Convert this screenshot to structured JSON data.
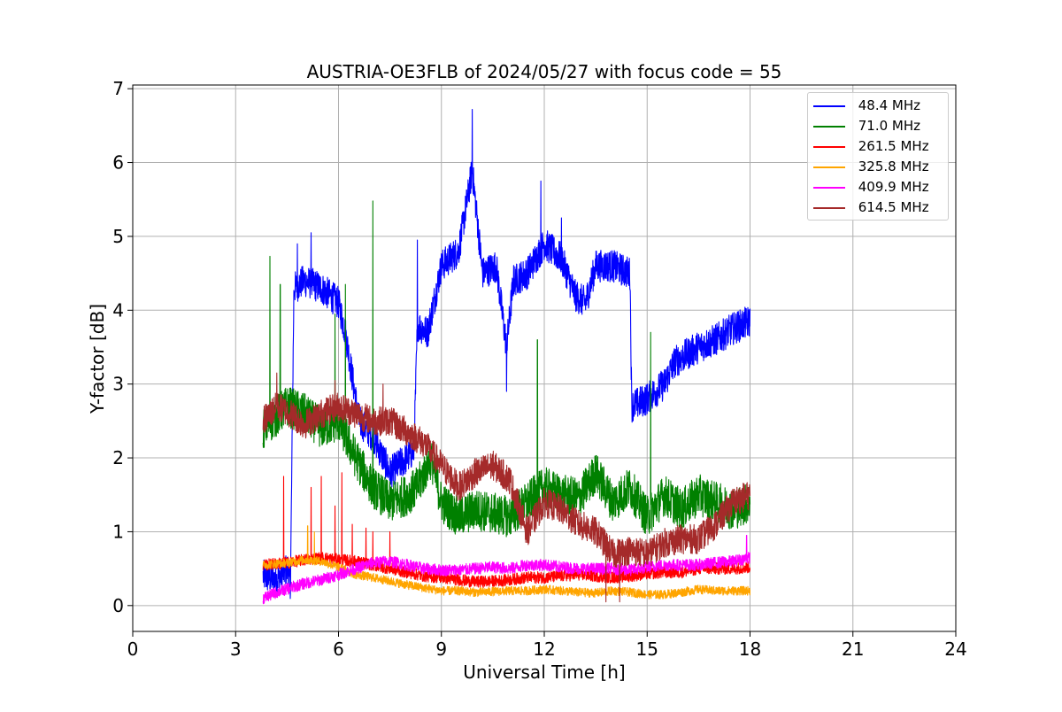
{
  "chart_data": {
    "type": "line",
    "title": "AUSTRIA-OE3FLB of 2024/05/27 with focus code = 55",
    "xlabel": "Universal Time [h]",
    "ylabel": "Y-factor [dB]",
    "xlim": [
      0,
      24
    ],
    "ylim": [
      -0.35,
      7.05
    ],
    "xticks": [
      0,
      3,
      6,
      9,
      12,
      15,
      18,
      21,
      24
    ],
    "yticks": [
      0,
      1,
      2,
      3,
      4,
      5,
      6,
      7
    ],
    "grid": true,
    "legend_position": "top-right",
    "series": [
      {
        "name": " 48.4 MHz",
        "color": "#0000ff",
        "noise": 0.22,
        "points": [
          [
            3.8,
            0.4
          ],
          [
            4.2,
            0.35
          ],
          [
            4.5,
            0.5
          ],
          [
            4.6,
            0.3
          ],
          [
            4.7,
            4.3
          ],
          [
            5.0,
            4.4
          ],
          [
            5.5,
            4.3
          ],
          [
            6.0,
            4.1
          ],
          [
            6.2,
            3.7
          ],
          [
            6.4,
            3.1
          ],
          [
            6.6,
            2.5
          ],
          [
            7.0,
            2.3
          ],
          [
            7.5,
            1.8
          ],
          [
            8.0,
            2.0
          ],
          [
            8.2,
            2.1
          ],
          [
            8.3,
            3.8
          ],
          [
            8.6,
            3.7
          ],
          [
            9.0,
            4.6
          ],
          [
            9.5,
            4.8
          ],
          [
            9.9,
            5.9
          ],
          [
            10.2,
            4.5
          ],
          [
            10.6,
            4.6
          ],
          [
            10.9,
            3.5
          ],
          [
            11.1,
            4.4
          ],
          [
            11.5,
            4.5
          ],
          [
            12.0,
            4.9
          ],
          [
            12.5,
            4.7
          ],
          [
            12.9,
            4.2
          ],
          [
            13.2,
            4.1
          ],
          [
            13.5,
            4.6
          ],
          [
            14.0,
            4.6
          ],
          [
            14.5,
            4.5
          ],
          [
            14.55,
            2.7
          ],
          [
            15.0,
            2.8
          ],
          [
            15.5,
            3.0
          ],
          [
            15.8,
            3.3
          ],
          [
            16.5,
            3.5
          ],
          [
            17.0,
            3.6
          ],
          [
            17.5,
            3.75
          ],
          [
            18.0,
            3.85
          ]
        ],
        "spikes": [
          [
            9.9,
            6.72
          ],
          [
            11.9,
            5.75
          ],
          [
            5.2,
            5.05
          ],
          [
            8.3,
            4.95
          ],
          [
            4.8,
            4.9
          ],
          [
            12.5,
            5.25
          ],
          [
            10.9,
            2.9
          ]
        ]
      },
      {
        "name": " 71.0 MHz",
        "color": "#008000",
        "noise": 0.28,
        "points": [
          [
            3.8,
            2.4
          ],
          [
            4.5,
            2.7
          ],
          [
            5.0,
            2.6
          ],
          [
            5.5,
            2.4
          ],
          [
            6.0,
            2.5
          ],
          [
            6.5,
            2.0
          ],
          [
            7.0,
            1.6
          ],
          [
            7.5,
            1.4
          ],
          [
            8.0,
            1.5
          ],
          [
            8.3,
            1.6
          ],
          [
            8.7,
            2.0
          ],
          [
            9.0,
            1.4
          ],
          [
            9.5,
            1.2
          ],
          [
            10.0,
            1.3
          ],
          [
            10.5,
            1.25
          ],
          [
            11.0,
            1.2
          ],
          [
            11.5,
            1.4
          ],
          [
            12.0,
            1.6
          ],
          [
            12.5,
            1.5
          ],
          [
            13.0,
            1.45
          ],
          [
            13.5,
            1.8
          ],
          [
            14.0,
            1.4
          ],
          [
            14.5,
            1.6
          ],
          [
            15.0,
            1.2
          ],
          [
            15.5,
            1.5
          ],
          [
            16.0,
            1.3
          ],
          [
            16.5,
            1.5
          ],
          [
            17.0,
            1.4
          ],
          [
            17.5,
            1.3
          ],
          [
            18.0,
            1.4
          ]
        ],
        "spikes": [
          [
            7.0,
            5.48
          ],
          [
            4.0,
            4.73
          ],
          [
            4.3,
            4.35
          ],
          [
            6.2,
            4.35
          ],
          [
            5.9,
            3.95
          ],
          [
            11.8,
            3.6
          ],
          [
            15.1,
            3.7
          ]
        ]
      },
      {
        "name": " 261.5 MHz",
        "color": "#ff0000",
        "noise": 0.08,
        "points": [
          [
            3.8,
            0.55
          ],
          [
            4.5,
            0.58
          ],
          [
            5.0,
            0.62
          ],
          [
            5.5,
            0.65
          ],
          [
            6.0,
            0.62
          ],
          [
            6.5,
            0.6
          ],
          [
            7.0,
            0.55
          ],
          [
            7.5,
            0.5
          ],
          [
            8.0,
            0.45
          ],
          [
            8.5,
            0.4
          ],
          [
            9.0,
            0.38
          ],
          [
            9.5,
            0.35
          ],
          [
            10.0,
            0.32
          ],
          [
            10.5,
            0.33
          ],
          [
            11.0,
            0.35
          ],
          [
            11.5,
            0.38
          ],
          [
            12.0,
            0.38
          ],
          [
            12.5,
            0.4
          ],
          [
            13.0,
            0.42
          ],
          [
            13.5,
            0.4
          ],
          [
            14.0,
            0.38
          ],
          [
            14.5,
            0.4
          ],
          [
            15.0,
            0.43
          ],
          [
            15.5,
            0.45
          ],
          [
            16.0,
            0.45
          ],
          [
            16.5,
            0.5
          ],
          [
            17.0,
            0.5
          ],
          [
            17.5,
            0.5
          ],
          [
            18.0,
            0.52
          ]
        ],
        "spikes": [
          [
            4.4,
            1.75
          ],
          [
            5.5,
            1.75
          ],
          [
            5.2,
            1.6
          ],
          [
            6.1,
            1.8
          ],
          [
            5.9,
            1.35
          ],
          [
            6.4,
            1.1
          ],
          [
            6.8,
            1.05
          ],
          [
            7.0,
            1.0
          ],
          [
            7.5,
            1.0
          ]
        ]
      },
      {
        "name": " 325.8 MHz",
        "color": "#ffa500",
        "noise": 0.06,
        "points": [
          [
            3.8,
            0.55
          ],
          [
            4.5,
            0.58
          ],
          [
            5.0,
            0.62
          ],
          [
            5.5,
            0.6
          ],
          [
            6.0,
            0.52
          ],
          [
            6.5,
            0.42
          ],
          [
            7.0,
            0.38
          ],
          [
            7.5,
            0.33
          ],
          [
            8.0,
            0.28
          ],
          [
            8.5,
            0.24
          ],
          [
            9.0,
            0.2
          ],
          [
            9.5,
            0.2
          ],
          [
            10.0,
            0.18
          ],
          [
            10.5,
            0.19
          ],
          [
            11.0,
            0.2
          ],
          [
            11.5,
            0.2
          ],
          [
            12.0,
            0.22
          ],
          [
            12.5,
            0.2
          ],
          [
            13.0,
            0.18
          ],
          [
            13.5,
            0.17
          ],
          [
            14.0,
            0.2
          ],
          [
            14.5,
            0.18
          ],
          [
            15.0,
            0.15
          ],
          [
            15.5,
            0.15
          ],
          [
            16.0,
            0.18
          ],
          [
            16.5,
            0.22
          ],
          [
            17.0,
            0.2
          ],
          [
            17.5,
            0.2
          ],
          [
            18.0,
            0.2
          ]
        ],
        "spikes": [
          [
            5.1,
            1.08
          ],
          [
            5.3,
            1.0
          ]
        ]
      },
      {
        "name": " 409.9 MHz",
        "color": "#ff00ff",
        "noise": 0.08,
        "points": [
          [
            3.8,
            0.1
          ],
          [
            4.2,
            0.18
          ],
          [
            4.6,
            0.24
          ],
          [
            5.0,
            0.3
          ],
          [
            5.5,
            0.35
          ],
          [
            6.0,
            0.42
          ],
          [
            6.5,
            0.5
          ],
          [
            7.0,
            0.58
          ],
          [
            7.5,
            0.6
          ],
          [
            8.0,
            0.55
          ],
          [
            8.5,
            0.5
          ],
          [
            9.0,
            0.48
          ],
          [
            9.5,
            0.48
          ],
          [
            10.0,
            0.5
          ],
          [
            10.5,
            0.52
          ],
          [
            11.0,
            0.5
          ],
          [
            11.5,
            0.55
          ],
          [
            12.0,
            0.55
          ],
          [
            12.5,
            0.52
          ],
          [
            13.0,
            0.5
          ],
          [
            13.5,
            0.5
          ],
          [
            14.0,
            0.5
          ],
          [
            14.5,
            0.48
          ],
          [
            15.0,
            0.52
          ],
          [
            15.5,
            0.55
          ],
          [
            16.0,
            0.55
          ],
          [
            16.5,
            0.55
          ],
          [
            17.0,
            0.58
          ],
          [
            17.5,
            0.6
          ],
          [
            18.0,
            0.65
          ]
        ],
        "spikes": [
          [
            17.9,
            0.95
          ]
        ]
      },
      {
        "name": " 614.5 MHz",
        "color": "#a52a2a",
        "noise": 0.2,
        "points": [
          [
            3.8,
            2.5
          ],
          [
            4.2,
            2.7
          ],
          [
            4.6,
            2.6
          ],
          [
            5.0,
            2.45
          ],
          [
            5.5,
            2.6
          ],
          [
            6.0,
            2.7
          ],
          [
            6.5,
            2.6
          ],
          [
            7.0,
            2.5
          ],
          [
            7.5,
            2.5
          ],
          [
            8.0,
            2.35
          ],
          [
            8.5,
            2.2
          ],
          [
            9.0,
            1.9
          ],
          [
            9.5,
            1.6
          ],
          [
            10.0,
            1.8
          ],
          [
            10.5,
            1.9
          ],
          [
            11.0,
            1.7
          ],
          [
            11.5,
            1.0
          ],
          [
            12.0,
            1.4
          ],
          [
            12.5,
            1.3
          ],
          [
            13.0,
            1.1
          ],
          [
            13.5,
            1.0
          ],
          [
            14.0,
            0.7
          ],
          [
            14.5,
            0.75
          ],
          [
            15.0,
            0.7
          ],
          [
            15.5,
            0.85
          ],
          [
            16.0,
            0.9
          ],
          [
            16.5,
            0.9
          ],
          [
            17.0,
            1.1
          ],
          [
            17.5,
            1.4
          ],
          [
            18.0,
            1.5
          ]
        ],
        "spikes": [
          [
            4.2,
            3.15
          ],
          [
            5.9,
            3.05
          ],
          [
            7.3,
            3.0
          ],
          [
            13.8,
            0.05
          ],
          [
            14.2,
            0.05
          ]
        ]
      }
    ]
  }
}
